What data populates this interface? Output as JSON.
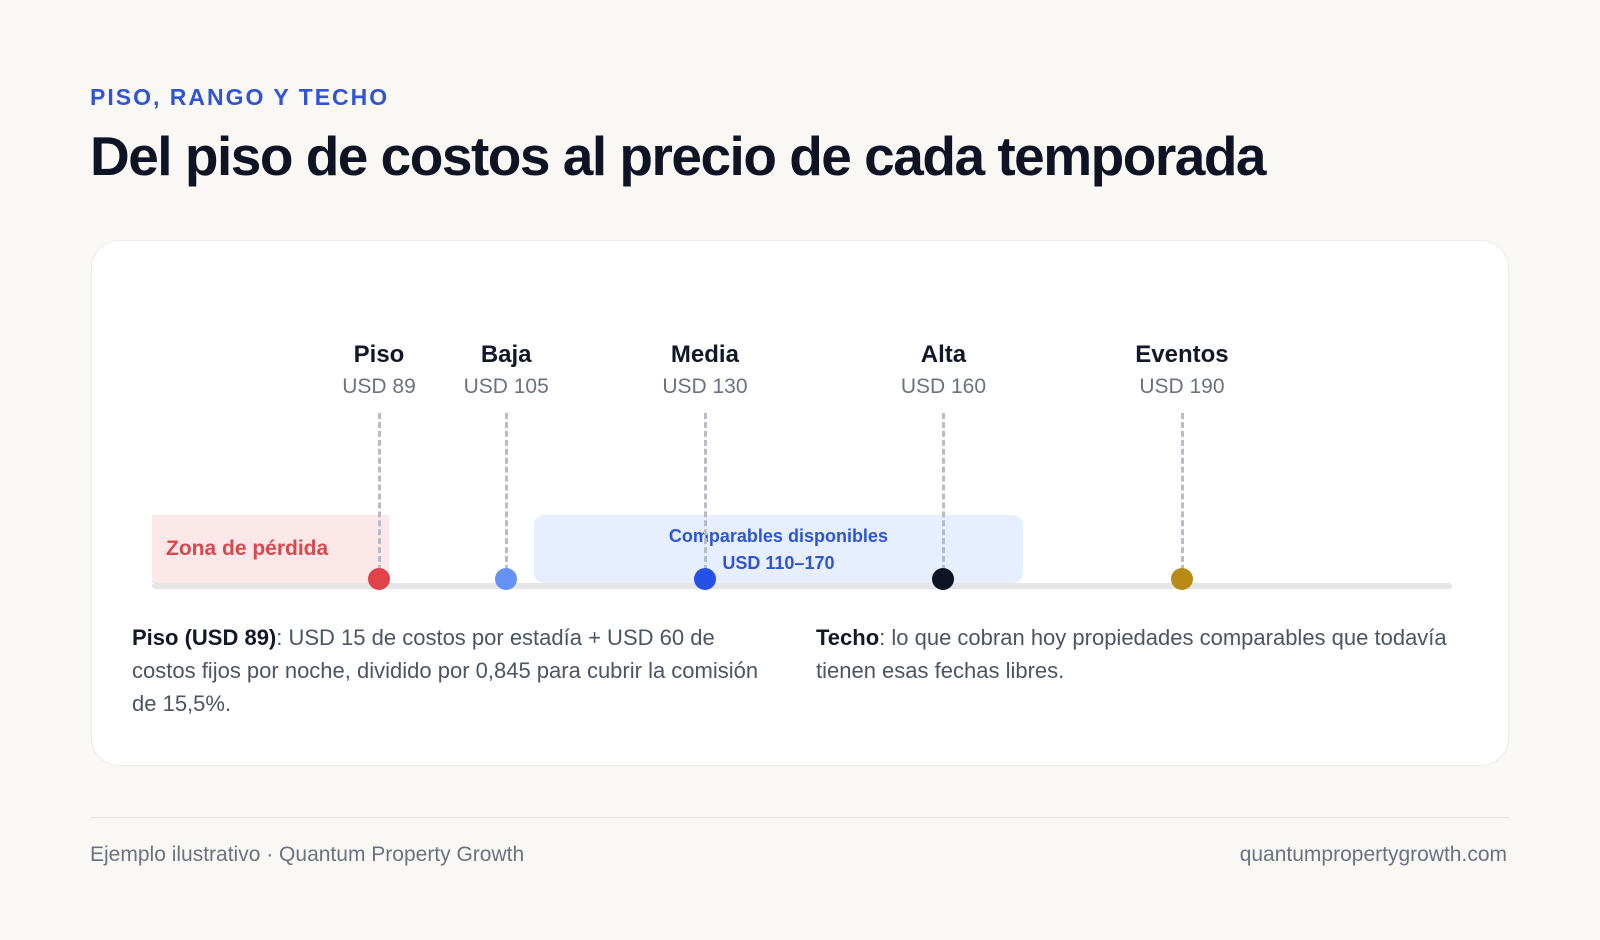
{
  "header": {
    "eyebrow": "PISO, RANGO Y TECHO",
    "title": "Del piso de costos al precio de cada temporada"
  },
  "scale": {
    "currency": "USD",
    "range": [
      70,
      215
    ],
    "loss_zone": {
      "label": "Zona de pérdida",
      "color": "#fde8e9",
      "text_color": "#d9484f"
    },
    "comparables": {
      "label": "Comparables disponibles",
      "range_label": "USD 110–170",
      "from": 110,
      "to": 170,
      "color": "#e6eeff",
      "text_color": "#2f55d4"
    },
    "markers": [
      {
        "name": "Piso",
        "value_label": "USD 89",
        "value": 89,
        "color": "#e2434b"
      },
      {
        "name": "Baja",
        "value_label": "USD 105",
        "value": 105,
        "color": "#6391f5"
      },
      {
        "name": "Media",
        "value_label": "USD 130",
        "value": 130,
        "color": "#2551e6"
      },
      {
        "name": "Alta",
        "value_label": "USD 160",
        "value": 160,
        "color": "#0f1424"
      },
      {
        "name": "Eventos",
        "value_label": "USD 190",
        "value": 190,
        "color": "#b88a16"
      }
    ]
  },
  "notes": {
    "left": {
      "bold": "Piso (USD 89)",
      "text": ": USD 15 de costos por estadía + USD 60 de costos fijos por noche, dividido por 0,845 para cubrir la comisión de 15,5%."
    },
    "right": {
      "bold": "Techo",
      "text": ": lo que cobran hoy propiedades comparables que todavía tienen esas fechas libres."
    }
  },
  "footer": {
    "left": "Ejemplo ilustrativo · Quantum Property Growth",
    "right": "quantumpropertygrowth.com"
  }
}
